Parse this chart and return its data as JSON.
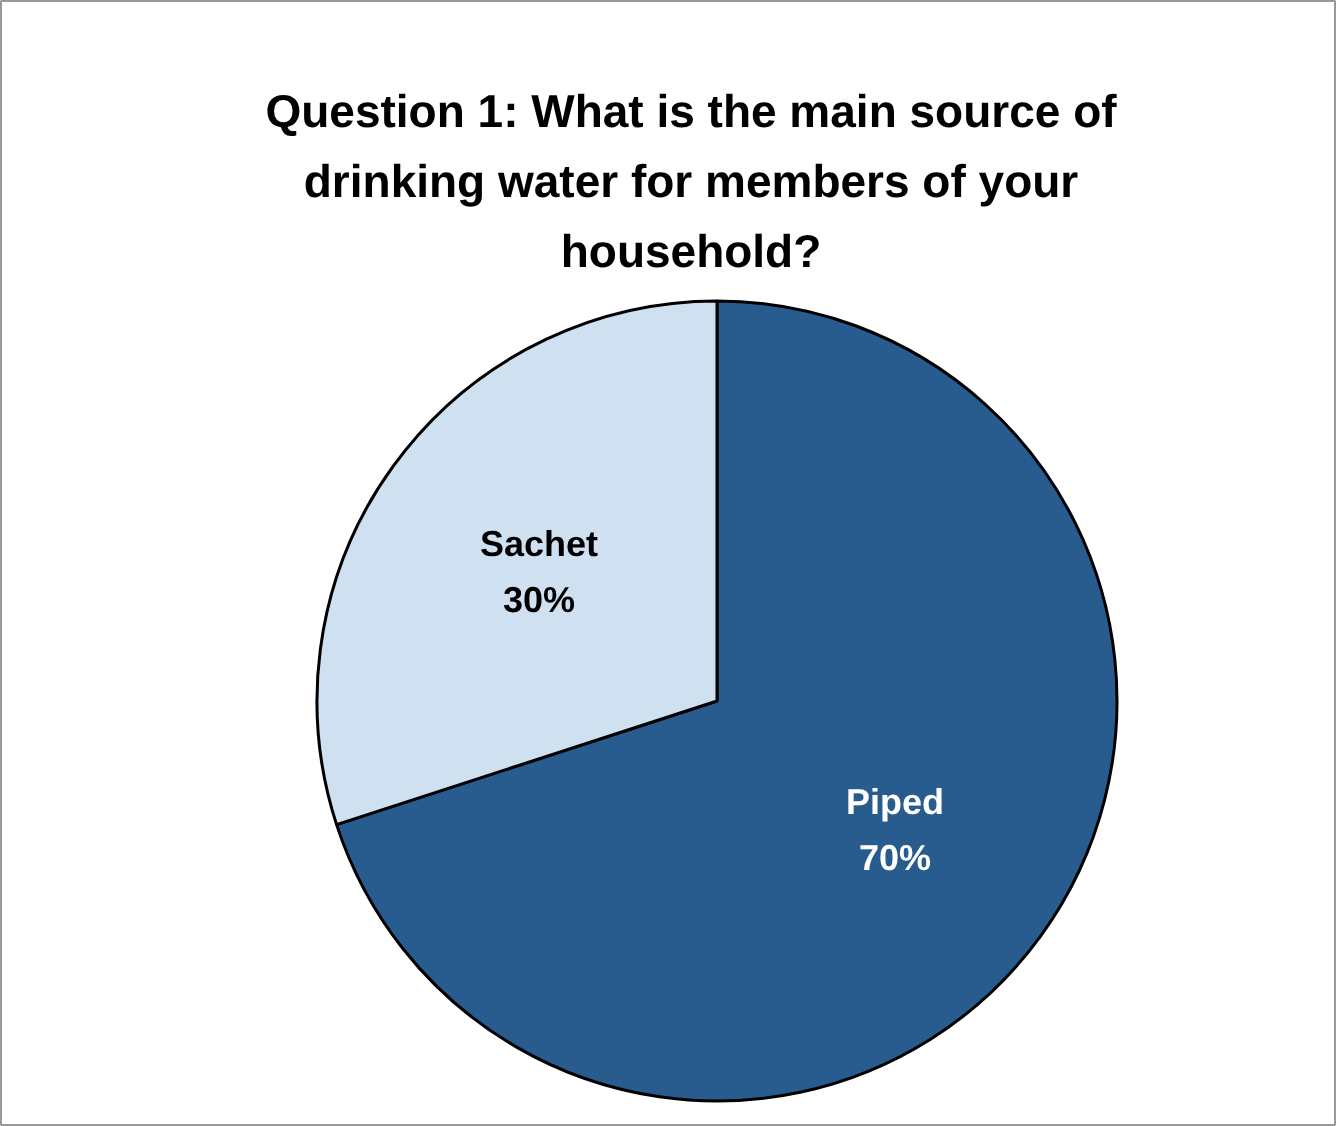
{
  "chart_data": {
    "type": "pie",
    "title": "Question 1: What is the main source of drinking water for members of your household?",
    "categories": [
      "Piped",
      "Sachet"
    ],
    "values": [
      70,
      30
    ],
    "colors": [
      "#285c8e",
      "#cfe0f1"
    ],
    "value_labels": [
      "70%",
      "30%"
    ]
  }
}
